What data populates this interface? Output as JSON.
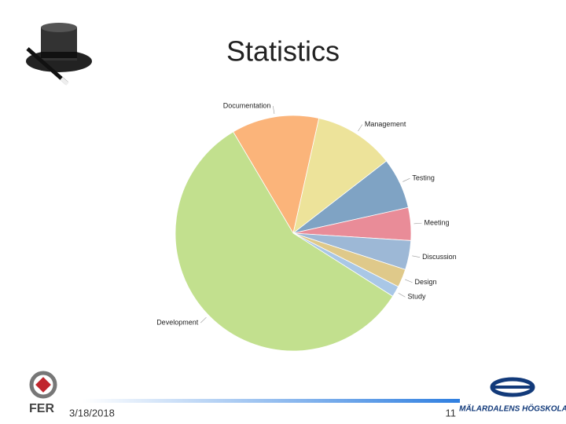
{
  "chart_data": {
    "type": "pie",
    "title": "Statistics",
    "categories": [
      "Documentation",
      "Management",
      "Testing",
      "Meeting",
      "Discussion",
      "Design",
      "Study",
      "Development"
    ],
    "values": [
      12,
      11,
      7,
      4.5,
      4,
      2.5,
      1.5,
      57.5
    ],
    "colors": [
      "#fbb47a",
      "#ede39a",
      "#7fa3c4",
      "#e98c98",
      "#9db8d6",
      "#dfc98a",
      "#a9c7e6",
      "#c2e08e"
    ]
  },
  "footer": {
    "date": "3/18/2018",
    "page": "11"
  },
  "logos": {
    "left": "FER",
    "right": "MÄLARDALENS HÖGSKOLA"
  }
}
